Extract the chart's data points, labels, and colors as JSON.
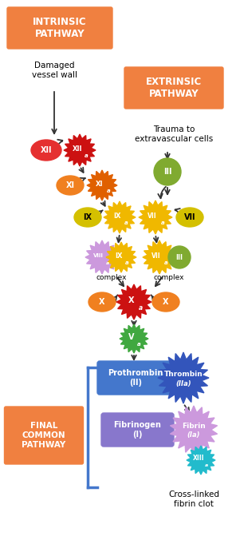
{
  "fig_width": 3.01,
  "fig_height": 6.91,
  "dpi": 100,
  "bg_color": "#ffffff",
  "orange_color": "#F08040",
  "intrinsic_title": "INTRINSIC\nPATHWAY",
  "extrinsic_title": "EXTRINSIC\nPATHWAY",
  "final_title": "FINAL\nCOMMON\nPATHWAY",
  "damaged_text": "Damaged\nvessel wall",
  "trauma_text": "Trauma to\nextravascular cells",
  "crosslinked_text": "Cross-linked\nfibrin clot",
  "complex_text": "complex",
  "red_dark": "#CC1111",
  "red_bright": "#E53030",
  "orange_node": "#F08020",
  "orange_dark": "#E06000",
  "yellow_node": "#D4C000",
  "yellow_bright": "#F0B800",
  "green_node": "#80AA30",
  "green_bright": "#40A840",
  "purple_light": "#CC99DD",
  "purple_med": "#8877CC",
  "blue_dark": "#3355BB",
  "blue_bright": "#4477CC",
  "teal_bright": "#22BBCC",
  "arrow_color": "#333333"
}
